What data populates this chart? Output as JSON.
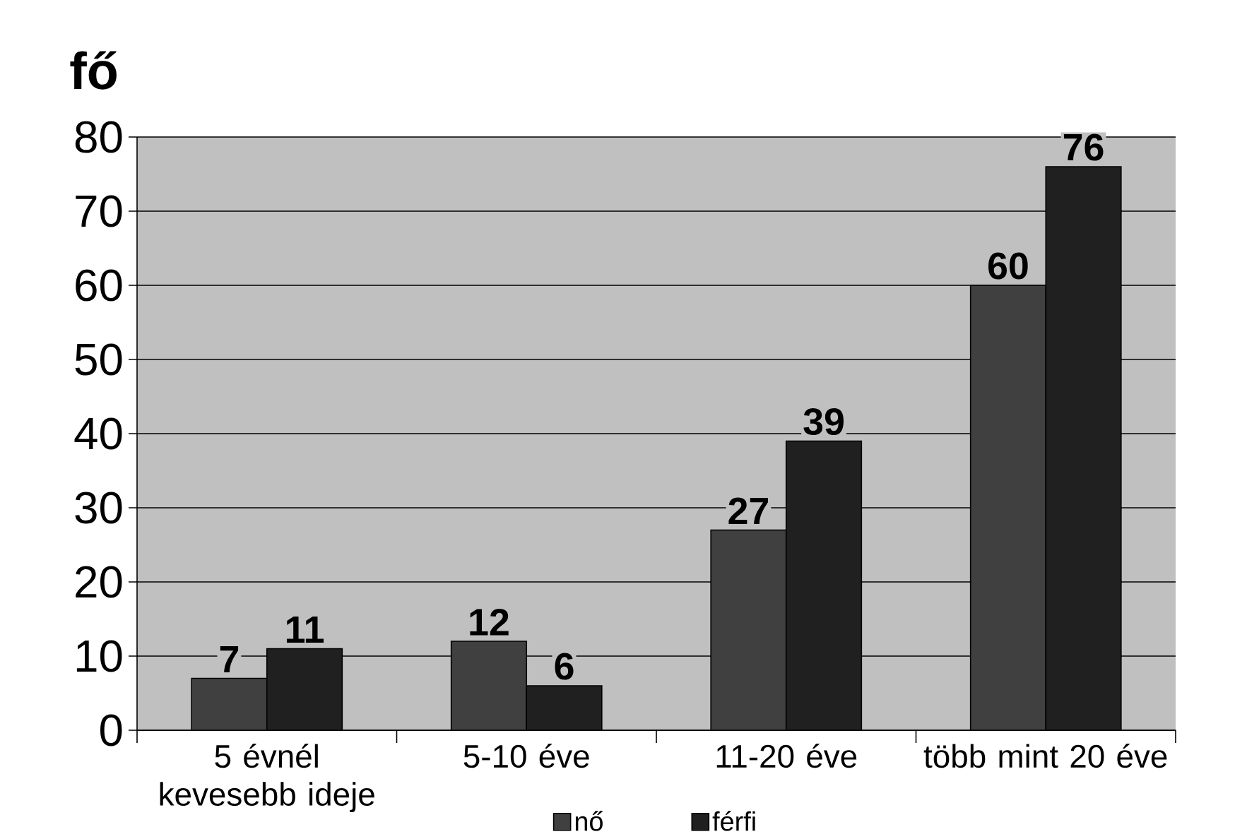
{
  "chart_data": {
    "type": "bar",
    "ylabel": "fő",
    "categories": [
      "5 évnél kevesebb ideje",
      "5-10 éve",
      "11-20 éve",
      "több mint 20 éve"
    ],
    "series": [
      {
        "name": "nő",
        "color": "#404040",
        "values": [
          7,
          12,
          27,
          60
        ]
      },
      {
        "name": "férfi",
        "color": "#202020",
        "values": [
          11,
          6,
          39,
          76
        ]
      }
    ],
    "ylim": [
      0,
      80
    ],
    "yticks": [
      0,
      10,
      20,
      30,
      40,
      50,
      60,
      70,
      80
    ],
    "grid": "y",
    "legend": "bottom",
    "data_labels": true
  }
}
